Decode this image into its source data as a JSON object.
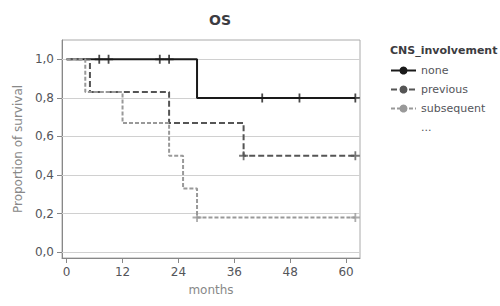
{
  "chart_data": {
    "type": "step",
    "title": "OS",
    "xlabel": "months",
    "ylabel": "Proportion of survival",
    "xlim": [
      -1,
      63
    ],
    "ylim": [
      -0.03,
      1.1
    ],
    "xticks": [
      0,
      12,
      24,
      36,
      48,
      60
    ],
    "yticks": [
      {
        "value": 0.0,
        "label": "0,0"
      },
      {
        "value": 0.2,
        "label": "0,2"
      },
      {
        "value": 0.4,
        "label": "0,4"
      },
      {
        "value": 0.6,
        "label": "0,6"
      },
      {
        "value": 0.8,
        "label": "0,8"
      },
      {
        "value": 1.0,
        "label": "1,0"
      }
    ],
    "grid": true,
    "legend": "right",
    "legend_title": "CNS_involvement",
    "series": [
      {
        "name": "none",
        "color": "#1a1a1a",
        "line_style": "solid",
        "marker": "plus",
        "x": [
          0,
          7,
          9,
          20,
          22,
          28,
          62
        ],
        "values": [
          1.0,
          1.0,
          1.0,
          1.0,
          1.0,
          0.8,
          0.8
        ],
        "censors_x": [
          7,
          9,
          20,
          22,
          42,
          50,
          62
        ],
        "censors_values": [
          1.0,
          1.0,
          1.0,
          1.0,
          0.8,
          0.8,
          0.8
        ]
      },
      {
        "name": "previous",
        "color": "#555555",
        "line_style": "dashed",
        "marker": "plus",
        "x": [
          0,
          5,
          12,
          22,
          36,
          38,
          62
        ],
        "values": [
          1.0,
          0.83,
          0.83,
          0.67,
          0.67,
          0.5,
          0.5
        ],
        "censors_x": [
          38,
          62
        ],
        "censors_values": [
          0.5,
          0.5
        ]
      },
      {
        "name": "subsequent",
        "color": "#999999",
        "line_style": "short_dashed",
        "marker": "plus",
        "x": [
          0,
          4,
          12,
          22,
          25,
          28,
          62
        ],
        "values": [
          1.0,
          0.83,
          0.67,
          0.5,
          0.33,
          0.18,
          0.18
        ],
        "censors_x": [
          28,
          62
        ],
        "censors_values": [
          0.18,
          0.18
        ]
      },
      {
        "name": "...",
        "color": "#ffffff",
        "x": [],
        "values": []
      }
    ]
  }
}
